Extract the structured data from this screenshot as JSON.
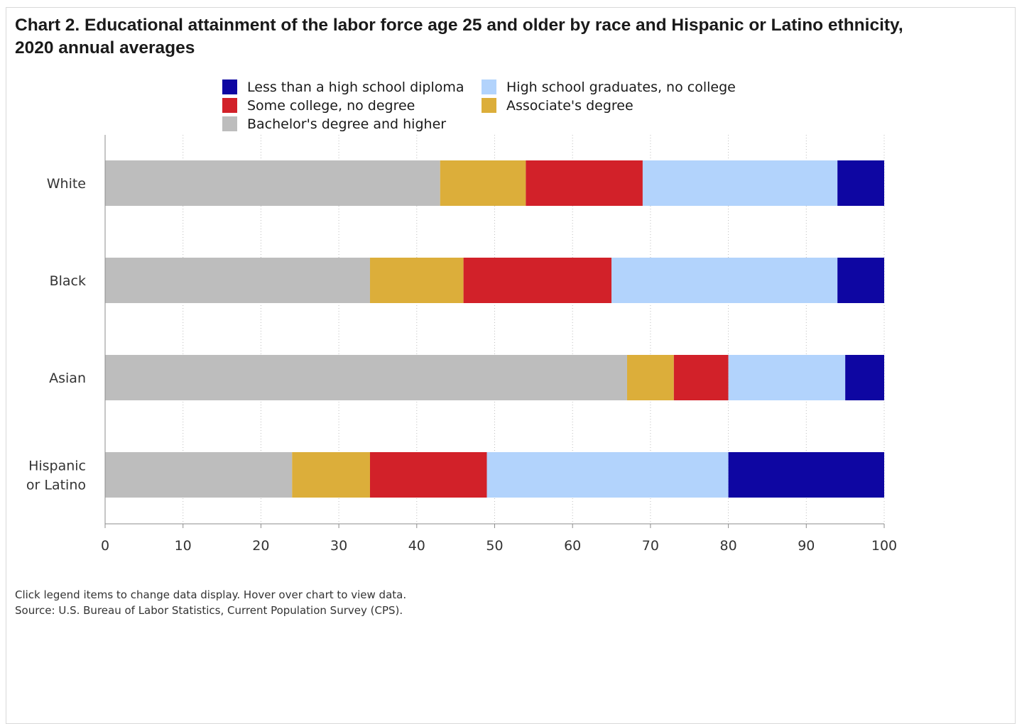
{
  "chart_data": {
    "type": "bar",
    "orientation": "horizontal",
    "stacked": true,
    "title": "Chart 2. Educational attainment of the labor force age 25 and older by race and Hispanic or Latino ethnicity, 2020 annual averages",
    "categories": [
      "White",
      "Black",
      "Asian",
      "Hispanic or Latino"
    ],
    "category_lines": [
      [
        "White"
      ],
      [
        "Black"
      ],
      [
        "Asian"
      ],
      [
        "Hispanic",
        "or Latino"
      ]
    ],
    "series": [
      {
        "name": "Bachelor's degree and higher",
        "color": "#bdbdbd",
        "values": [
          43,
          34,
          67,
          24
        ]
      },
      {
        "name": "Associate's degree",
        "color": "#dcae3a",
        "values": [
          11,
          12,
          6,
          10
        ]
      },
      {
        "name": "Some college, no degree",
        "color": "#d22129",
        "values": [
          15,
          19,
          7,
          15
        ]
      },
      {
        "name": "High school graduates, no college",
        "color": "#b2d3fc",
        "values": [
          25,
          29,
          15,
          31
        ]
      },
      {
        "name": "Less than a high school diploma",
        "color": "#0e06a2",
        "values": [
          6,
          6,
          5,
          20
        ]
      }
    ],
    "legend_order": [
      "Less than a high school diploma",
      "High school graduates, no college",
      "Some college, no degree",
      "Associate's degree",
      "Bachelor's degree and higher"
    ],
    "xlim": [
      0,
      100
    ],
    "xticks": [
      0,
      10,
      20,
      30,
      40,
      50,
      60,
      70,
      80,
      90,
      100
    ],
    "xlabel": "",
    "ylabel": "",
    "grid": "vertical dotted",
    "legend_position": "top"
  },
  "legend": {
    "items": [
      {
        "label": "Less than a high school diploma",
        "color": "#0e06a2"
      },
      {
        "label": "High school graduates, no college",
        "color": "#b2d3fc"
      },
      {
        "label": "Some college, no degree",
        "color": "#d22129"
      },
      {
        "label": "Associate's degree",
        "color": "#dcae3a"
      },
      {
        "label": "Bachelor's degree and higher",
        "color": "#bdbdbd"
      }
    ]
  },
  "footnotes": {
    "instructions": "Click legend items to change data display. Hover over chart to view data.",
    "source": "Source: U.S. Bureau of Labor Statistics, Current Population Survey (CPS)."
  }
}
